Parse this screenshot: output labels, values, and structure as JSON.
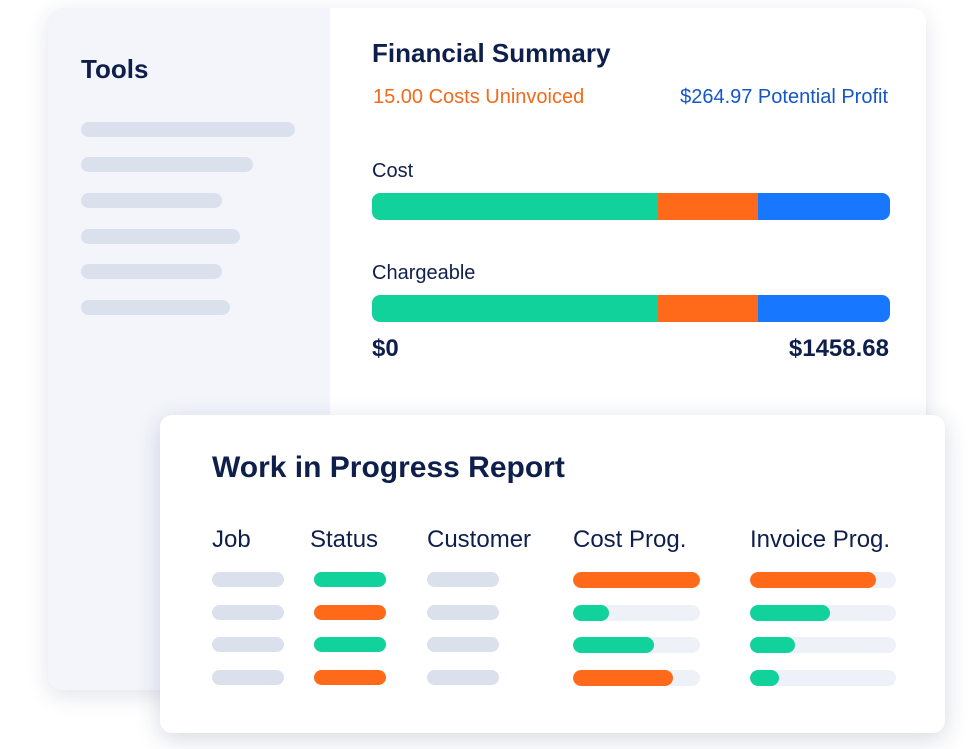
{
  "colors": {
    "green": "#10d29a",
    "orange": "#ff6a1a",
    "blue": "#1877ff",
    "placeholder": "#dbe0ed",
    "track": "#eef1f7",
    "navy": "#0f1f4b"
  },
  "sidebar": {
    "title": "Tools",
    "placeholder_item_count": 6
  },
  "financial_summary": {
    "title": "Financial Summary",
    "uninvoiced": "15.00 Costs Uninvoiced",
    "profit": "$264.97 Potential Profit",
    "bars": [
      {
        "label": "Cost",
        "segments": [
          {
            "color": "green",
            "fraction": 0.552
          },
          {
            "color": "orange",
            "fraction": 0.193
          },
          {
            "color": "blue",
            "fraction": 0.255
          }
        ]
      },
      {
        "label": "Chargeable",
        "segments": [
          {
            "color": "green",
            "fraction": 0.552
          },
          {
            "color": "orange",
            "fraction": 0.193
          },
          {
            "color": "blue",
            "fraction": 0.255
          }
        ]
      }
    ],
    "range_min": "$0",
    "range_max": "$1458.68"
  },
  "wip_report": {
    "title": "Work in Progress Report",
    "columns": [
      "Job",
      "Status",
      "Customer",
      "Cost Prog.",
      "Invoice Prog."
    ],
    "rows": [
      {
        "status_color": "green",
        "cost_progress": 1.0,
        "cost_color": "orange",
        "invoice_progress": 0.86,
        "invoice_color": "orange"
      },
      {
        "status_color": "orange",
        "cost_progress": 0.28,
        "cost_color": "green",
        "invoice_progress": 0.55,
        "invoice_color": "green"
      },
      {
        "status_color": "green",
        "cost_progress": 0.64,
        "cost_color": "green",
        "invoice_progress": 0.31,
        "invoice_color": "green"
      },
      {
        "status_color": "orange",
        "cost_progress": 0.79,
        "cost_color": "orange",
        "invoice_progress": 0.2,
        "invoice_color": "green"
      }
    ]
  }
}
